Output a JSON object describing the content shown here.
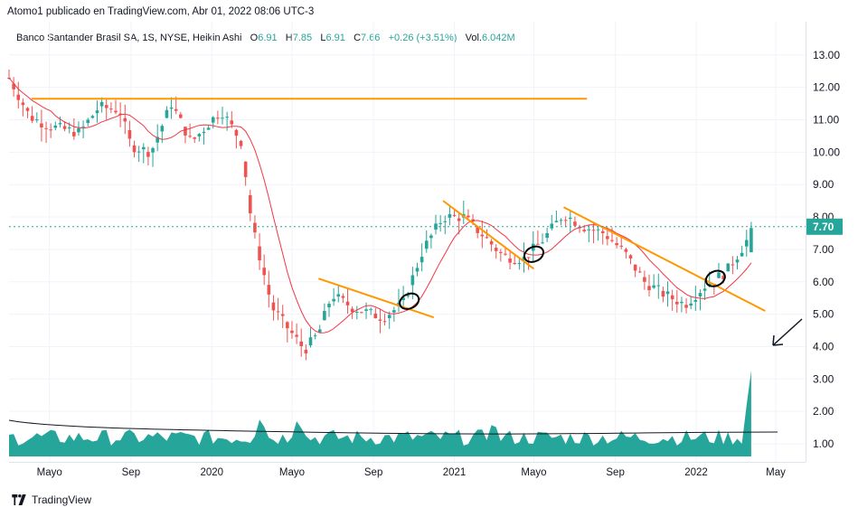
{
  "header": {
    "publisher_line": "Atomo1 publicado en TradingView.com, Abr 01, 2022 08:06 UTC-3"
  },
  "legend": {
    "symbol": "Banco Santander Brasil SA, 1S, NYSE, Heikin Ashi",
    "o_label": "O",
    "o": "6.91",
    "h_label": "H",
    "h": "7.85",
    "l_label": "L",
    "l": "6.91",
    "c_label": "C",
    "c": "7.66",
    "change": "+0.26 (+3.51%)",
    "vol_label": "Vol.",
    "vol": "6.042M"
  },
  "footer": {
    "brand": "TradingView",
    "logo_icon": "tradingview-logo-icon"
  },
  "colors": {
    "up": "#26a69a",
    "down": "#ef5350",
    "ma": "#f23645",
    "trend": "#ff9800",
    "price_line": "#26a69a",
    "annotation": "#000000"
  },
  "chart_data": {
    "type": "candlestick",
    "title": "Banco Santander Brasil SA, 1S, NYSE, Heikin Ashi",
    "y_axis": {
      "ticks": [
        "13.00",
        "12.00",
        "11.00",
        "10.00",
        "9.00",
        "8.00",
        "7.00",
        "6.00",
        "5.00",
        "4.00",
        "3.00",
        "2.00",
        "1.00"
      ],
      "range": [
        0.6,
        13.6
      ],
      "current_price_label": "7.70"
    },
    "x_axis": {
      "ticks": [
        "Mayo",
        "Sep",
        "2020",
        "Mayo",
        "Sep",
        "2021",
        "Mayo",
        "Sep",
        "2022",
        "May"
      ]
    },
    "price_points": [
      [
        "2019-03-01",
        12.3
      ],
      [
        "2019-04-01",
        11.1
      ],
      [
        "2019-05-01",
        10.8
      ],
      [
        "2019-06-15",
        10.6
      ],
      [
        "2019-07-15",
        11.4
      ],
      [
        "2019-08-15",
        11.3
      ],
      [
        "2019-09-01",
        10.2
      ],
      [
        "2019-10-01",
        10.0
      ],
      [
        "2019-11-01",
        11.5
      ],
      [
        "2019-12-01",
        10.3
      ],
      [
        "2020-01-15",
        11.3
      ],
      [
        "2020-02-15",
        10.3
      ],
      [
        "2020-03-01",
        7.8
      ],
      [
        "2020-04-01",
        5.2
      ],
      [
        "2020-05-01",
        4.4
      ],
      [
        "2020-05-20",
        3.9
      ],
      [
        "2020-06-10",
        4.4
      ],
      [
        "2020-06-30",
        5.6
      ],
      [
        "2020-08-01",
        5.2
      ],
      [
        "2020-09-15",
        4.9
      ],
      [
        "2020-10-15",
        5.3
      ],
      [
        "2020-11-15",
        7.0
      ],
      [
        "2020-12-15",
        8.0
      ],
      [
        "2021-01-15",
        8.0
      ],
      [
        "2021-02-15",
        7.4
      ],
      [
        "2021-03-15",
        6.8
      ],
      [
        "2021-04-15",
        6.7
      ],
      [
        "2021-05-15",
        7.3
      ],
      [
        "2021-06-15",
        8.1
      ],
      [
        "2021-07-15",
        7.7
      ],
      [
        "2021-08-15",
        7.5
      ],
      [
        "2021-09-15",
        6.9
      ],
      [
        "2021-10-15",
        6.0
      ],
      [
        "2021-11-15",
        5.6
      ],
      [
        "2021-12-15",
        5.3
      ],
      [
        "2022-01-15",
        5.9
      ],
      [
        "2022-02-15",
        6.3
      ],
      [
        "2022-03-10",
        7.0
      ],
      [
        "2022-03-31",
        7.7
      ]
    ],
    "volume_scale_ticks_shown": false,
    "horizontal_lines": [
      {
        "y": 11.65,
        "from": "2019-03-01",
        "to": "2021-07-20",
        "color": "orange"
      }
    ],
    "trendlines": [
      {
        "from": [
          "2020-06-10",
          6.1
        ],
        "to": [
          "2020-12-01",
          4.9
        ]
      },
      {
        "from": [
          "2020-12-15",
          8.5
        ],
        "to": [
          "2021-05-01",
          6.4
        ]
      },
      {
        "from": [
          "2021-06-15",
          8.3
        ],
        "to": [
          "2022-04-15",
          5.1
        ]
      }
    ],
    "annotations": [
      {
        "type": "ellipse",
        "at": [
          "2020-10-25",
          5.4
        ]
      },
      {
        "type": "ellipse",
        "at": [
          "2021-05-01",
          6.85
        ]
      },
      {
        "type": "ellipse",
        "at": [
          "2022-01-30",
          6.1
        ]
      },
      {
        "type": "arrow",
        "pointing": "down-left"
      }
    ]
  }
}
